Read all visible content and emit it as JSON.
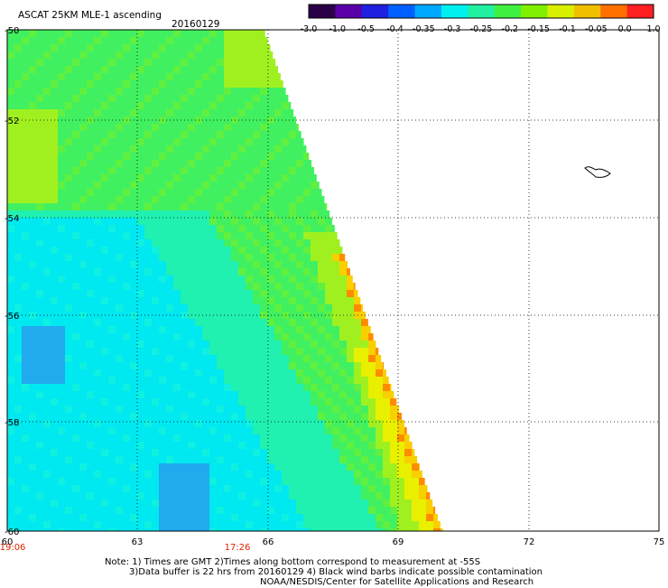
{
  "header": {
    "title": "ASCAT 25KM MLE-1 ascending",
    "date": "20160129"
  },
  "colorbar": {
    "labels": [
      "-3.0",
      "-1.0",
      "-0.5",
      "-0.4",
      "-0.35",
      "-0.3",
      "-0.25",
      "-0.2",
      "-0.15",
      "-0.1",
      "-0.05",
      "0.0",
      "1.0"
    ],
    "colors": [
      "#2a0048",
      "#5a00a8",
      "#2020e0",
      "#0060ff",
      "#00a8ff",
      "#00f0f0",
      "#20f0a0",
      "#40f040",
      "#80f000",
      "#d8f000",
      "#f0c000",
      "#ff7000",
      "#ff2020"
    ]
  },
  "map": {
    "lat_labels": [
      "-50",
      "-52",
      "-54",
      "-56",
      "-58",
      "-60"
    ],
    "lon_labels": [
      "60",
      "63",
      "66",
      "69",
      "72",
      "75"
    ],
    "time_labels": [
      "19:06",
      "17:26"
    ],
    "time_color": "#dd2200",
    "lat_range": [
      -60,
      -50
    ],
    "lon_range": [
      60,
      75
    ]
  },
  "notes": {
    "line1": "Note: 1) Times are GMT 2)Times along bottom correspond to measurement at -55S",
    "line2": "3)Data buffer is 22 hrs from 20160129 4) Black wind barbs indicate possible contamination",
    "line3": "NOAA/NESDIS/Center for Satellite Applications and Research"
  }
}
